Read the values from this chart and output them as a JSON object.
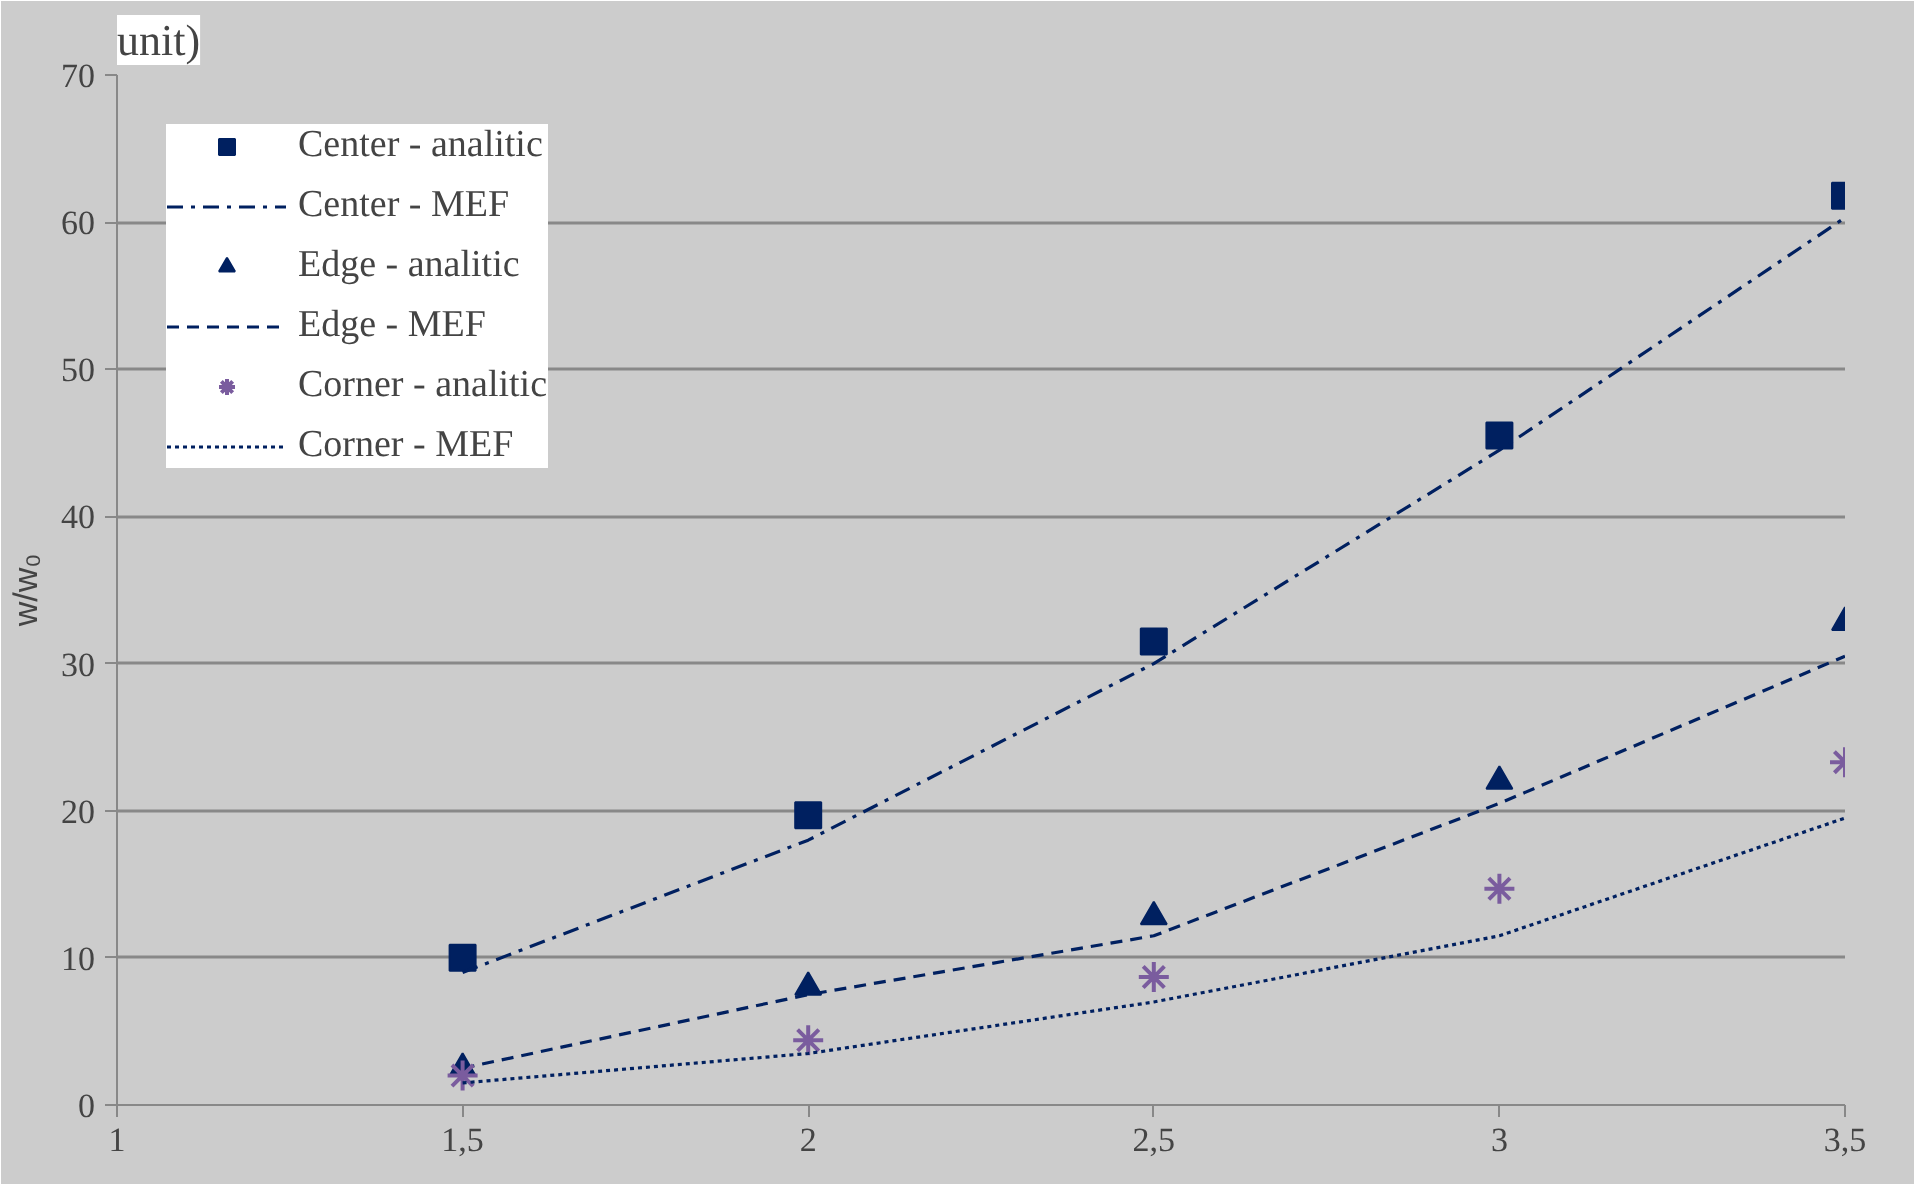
{
  "chart_data": {
    "type": "scatter",
    "title": "unit)",
    "ylabel": "w/w₀",
    "x": [
      1.5,
      2,
      2.5,
      3,
      3.5
    ],
    "series": [
      {
        "name": "Center - analitic",
        "marker": "square",
        "color": "#002060",
        "values": [
          10,
          19.7,
          31.5,
          45.5,
          61.8
        ]
      },
      {
        "name": "Center - MEF",
        "type": "line",
        "marker": "none",
        "line_style": "dashdot",
        "color": "#002060",
        "values": [
          9,
          18,
          30,
          44.5,
          60.3
        ]
      },
      {
        "name": "Edge - analitic",
        "marker": "triangle",
        "color": "#002060",
        "values": [
          2.5,
          8,
          12.8,
          22,
          32.8
        ]
      },
      {
        "name": "Edge - MEF",
        "type": "line",
        "marker": "none",
        "line_style": "dashed",
        "color": "#002060",
        "values": [
          2.5,
          7.5,
          11.5,
          20.5,
          30.5
        ]
      },
      {
        "name": "Corner - analitic",
        "marker": "cross",
        "color": "#7a5c9e",
        "values": [
          2,
          4.4,
          8.7,
          14.7,
          23.3
        ]
      },
      {
        "name": "Corner - MEF",
        "type": "line",
        "marker": "none",
        "line_style": "dotted",
        "color": "#002060",
        "values": [
          1.5,
          3.5,
          7,
          11.5,
          19.5
        ]
      }
    ],
    "xlim": [
      1,
      3.5
    ],
    "ylim": [
      0,
      70
    ],
    "xticks": [
      1,
      {
        "value": 1.5,
        "label": "1,5"
      },
      2,
      {
        "value": 2.5,
        "label": "2,5"
      },
      3,
      {
        "value": 3.5,
        "label": "3,5"
      }
    ],
    "yticks": [
      0,
      10,
      20,
      30,
      40,
      50,
      60,
      70
    ],
    "grid": "y",
    "legend": "top left"
  }
}
